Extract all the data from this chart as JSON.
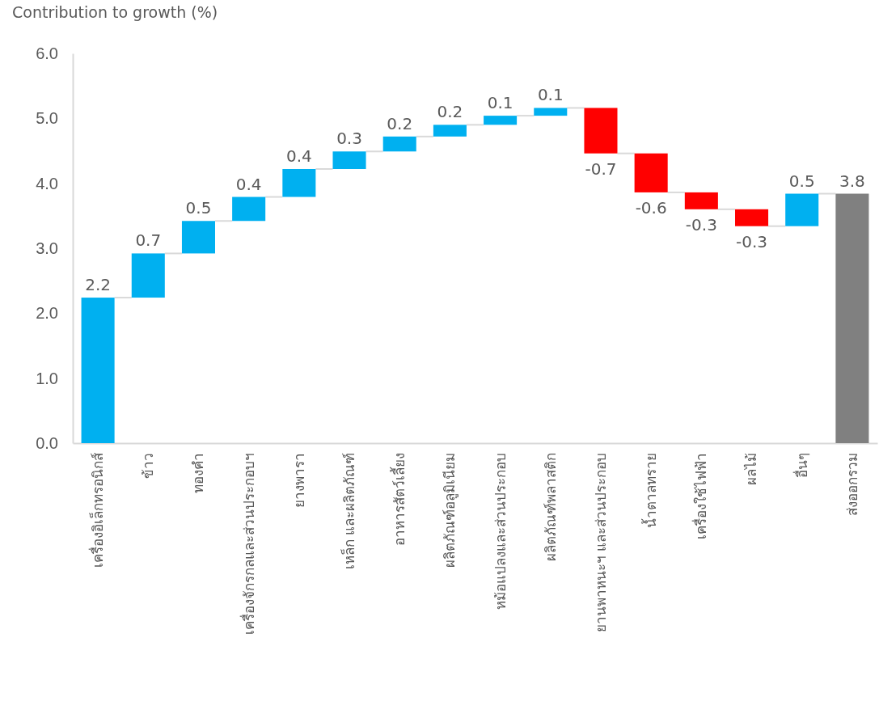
{
  "chart_data": {
    "type": "bar",
    "ylabel": "Contribution to growth (%)",
    "categories": [
      "เครื่องอิเล็กทรอนิกส์",
      "ข้าว",
      "ทองคำ",
      "เครื่องจักรกลและส่วนประกอบฯ",
      "ยางพารา",
      "เหล็ก และผลิตภัณฑ์",
      "อาหารสัตว์เลี้ยง",
      "ผลิตภัณฑ์อลูมิเนียม",
      "หม้อแปลงและส่วนประกอบ",
      "ผลิตภัณฑ์พลาสติก",
      "ยานพาหนะฯ และส่วนประกอบ",
      "น้ำตาลทราย",
      "เครื่องใช้ไฟฟ้า",
      "ผลไม้",
      "อื่นๆ",
      "ส่งออกรวม"
    ],
    "values": [
      2.24,
      0.68,
      0.5,
      0.37,
      0.43,
      0.27,
      0.23,
      0.18,
      0.14,
      0.12,
      -0.7,
      -0.6,
      -0.26,
      -0.26,
      0.5,
      3.84
    ],
    "base": [
      0,
      2.24,
      2.92,
      3.42,
      3.79,
      4.22,
      4.49,
      4.72,
      4.9,
      5.04,
      5.16,
      4.46,
      3.86,
      3.6,
      3.34,
      0
    ],
    "colors": [
      "#00b0f0",
      "#00b0f0",
      "#00b0f0",
      "#00b0f0",
      "#00b0f0",
      "#00b0f0",
      "#00b0f0",
      "#00b0f0",
      "#00b0f0",
      "#00b0f0",
      "#ff0000",
      "#ff0000",
      "#ff0000",
      "#ff0000",
      "#00b0f0",
      "#808080"
    ],
    "value_labels": [
      "2.2",
      "0.7",
      "0.5",
      "0.4",
      "0.4",
      "0.3",
      "0.2",
      "0.2",
      "0.1",
      "0.1",
      "-0.7",
      "-0.6",
      "-0.3",
      "-0.3",
      "0.5",
      "3.8"
    ],
    "ylim": [
      0,
      6
    ],
    "yticks": [
      {
        "value": 0,
        "label": "0.0"
      },
      {
        "value": 1,
        "label": "1.0"
      },
      {
        "value": 2,
        "label": "2.0"
      },
      {
        "value": 3,
        "label": "3.0"
      },
      {
        "value": 4,
        "label": "4.0"
      },
      {
        "value": 5,
        "label": "5.0"
      },
      {
        "value": 6,
        "label": "6.0"
      }
    ]
  }
}
